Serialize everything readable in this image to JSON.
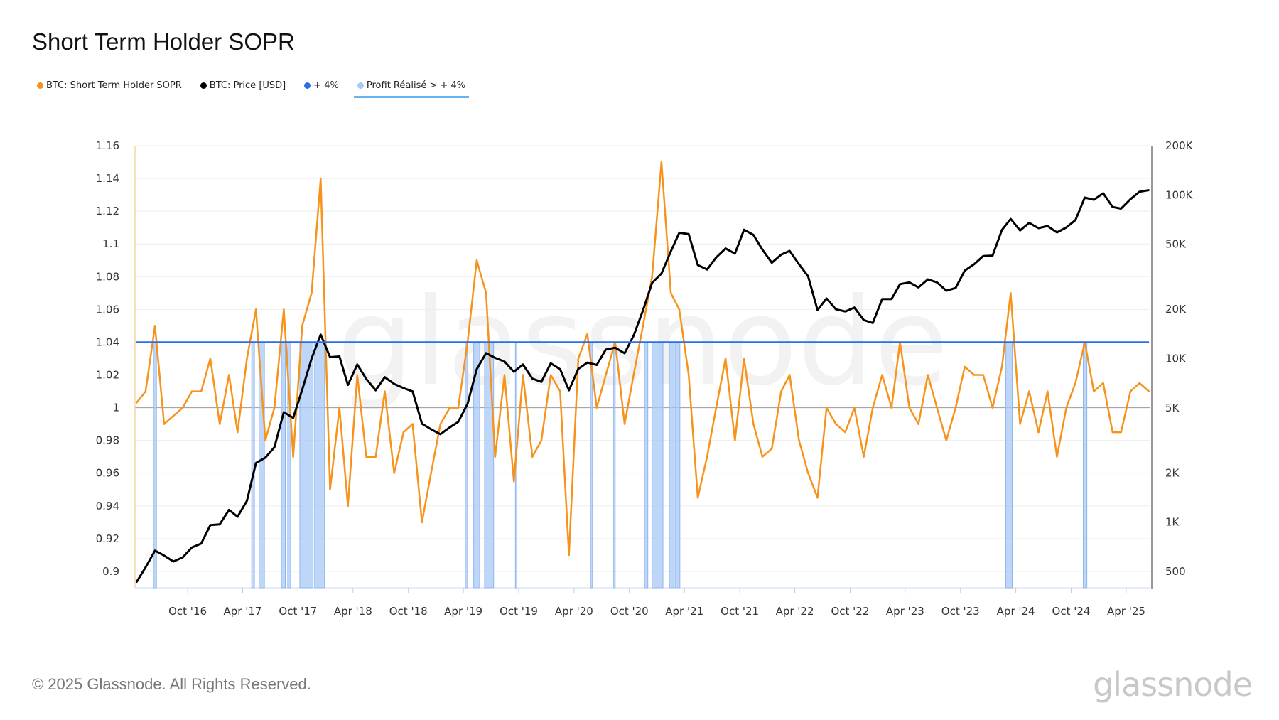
{
  "title": "Short Term Holder SOPR",
  "legend": [
    {
      "label": "BTC: Short Term Holder SOPR",
      "color": "#f7931a"
    },
    {
      "label": "BTC: Price [USD]",
      "color": "#000000"
    },
    {
      "label": "+ 4%",
      "color": "#2a6ee8"
    },
    {
      "label": "Profit Réalisé > + 4%",
      "color": "#a8c8f5",
      "active": true
    }
  ],
  "footer": "© 2025 Glassnode. All Rights Reserved.",
  "logo": "glassnode",
  "watermark": "glassnode",
  "chart_data": {
    "type": "line",
    "title": "Short Term Holder SOPR",
    "x_range": [
      "2016-04-10",
      "2025-06-20"
    ],
    "x_ticks": [
      "Oct '16",
      "Apr '17",
      "Oct '17",
      "Apr '18",
      "Oct '18",
      "Apr '19",
      "Oct '19",
      "Apr '20",
      "Oct '20",
      "Apr '21",
      "Oct '21",
      "Apr '22",
      "Oct '22",
      "Apr '23",
      "Oct '23",
      "Apr '24",
      "Oct '24",
      "Apr '25"
    ],
    "x_tick_dates": [
      "2016-10-01",
      "2017-04-01",
      "2017-10-01",
      "2018-04-01",
      "2018-10-01",
      "2019-04-01",
      "2019-10-01",
      "2020-04-01",
      "2020-10-01",
      "2021-04-01",
      "2021-10-01",
      "2022-04-01",
      "2022-10-01",
      "2023-04-01",
      "2023-10-01",
      "2024-04-01",
      "2024-10-01",
      "2025-04-01"
    ],
    "y_left": {
      "range": [
        0.89,
        1.16
      ],
      "ticks": [
        "0.9",
        "0.92",
        "0.94",
        "0.96",
        "0.98",
        "1",
        "1.02",
        "1.04",
        "1.06",
        "1.08",
        "1.1",
        "1.12",
        "1.14",
        "1.16"
      ]
    },
    "y_right": {
      "scale": "log",
      "range": [
        397,
        200000
      ],
      "ticks": [
        "500",
        "1K",
        "2K",
        "5K",
        "10K",
        "20K",
        "50K",
        "100K",
        "200K"
      ],
      "tick_values": [
        500,
        1000,
        2000,
        5000,
        10000,
        20000,
        50000,
        100000,
        200000
      ]
    },
    "grid": true,
    "legend_position": "top-left",
    "series_start_month": "2016-04",
    "series": [
      {
        "name": "BTC: Short Term Holder SOPR",
        "axis": "left",
        "color": "#f7931a",
        "values": [
          1.003,
          1.01,
          1.05,
          0.99,
          0.995,
          1.0,
          1.01,
          1.01,
          1.03,
          0.99,
          1.02,
          0.985,
          1.03,
          1.06,
          0.98,
          1.0,
          1.06,
          0.97,
          1.05,
          1.07,
          1.14,
          0.95,
          1.0,
          0.94,
          1.02,
          0.97,
          0.97,
          1.01,
          0.96,
          0.985,
          0.99,
          0.93,
          0.96,
          0.99,
          1.0,
          1.0,
          1.04,
          1.09,
          1.07,
          0.97,
          1.02,
          0.955,
          1.02,
          0.97,
          0.98,
          1.02,
          1.01,
          0.91,
          1.03,
          1.045,
          1.0,
          1.02,
          1.04,
          0.99,
          1.02,
          1.05,
          1.08,
          1.15,
          1.07,
          1.06,
          1.02,
          0.945,
          0.97,
          1.0,
          1.03,
          0.98,
          1.03,
          0.99,
          0.97,
          0.975,
          1.01,
          1.02,
          0.98,
          0.96,
          0.945,
          1.0,
          0.99,
          0.985,
          1.0,
          0.97,
          1.0,
          1.02,
          1.0,
          1.04,
          1.0,
          0.99,
          1.02,
          1.0,
          0.98,
          1.0,
          1.025,
          1.02,
          1.02,
          1.0,
          1.025,
          1.07,
          0.99,
          1.01,
          0.985,
          1.01,
          0.97,
          1.0,
          1.015,
          1.04,
          1.01,
          1.015,
          0.985,
          0.985,
          1.01,
          1.015,
          1.01
        ]
      },
      {
        "name": "BTC: Price [USD]",
        "axis": "right",
        "color": "#000000",
        "values": [
          430,
          530,
          670,
          625,
          575,
          610,
          700,
          740,
          960,
          970,
          1190,
          1080,
          1350,
          2300,
          2480,
          2870,
          4700,
          4340,
          6450,
          10000,
          14000,
          10200,
          10300,
          6900,
          9200,
          7500,
          6400,
          7700,
          7000,
          6600,
          6300,
          4000,
          3700,
          3450,
          3800,
          4100,
          5300,
          8600,
          10800,
          10100,
          9600,
          8300,
          9200,
          7550,
          7200,
          9350,
          8600,
          6400,
          8650,
          9450,
          9140,
          11350,
          11650,
          10780,
          13800,
          19700,
          29000,
          33100,
          45200,
          58800,
          57700,
          37300,
          35000,
          41500,
          47100,
          43800,
          61300,
          57000,
          46300,
          38500,
          43200,
          45500,
          37700,
          31800,
          19800,
          23300,
          20000,
          19400,
          20500,
          17200,
          16500,
          23100,
          23100,
          28500,
          29200,
          27200,
          30500,
          29200,
          26000,
          27000,
          34500,
          37700,
          42300,
          42600,
          61200,
          71300,
          60700,
          67500,
          62700,
          64600,
          59000,
          63300,
          70200,
          96400,
          93400,
          102400,
          84400,
          82500,
          94200,
          104600,
          107000
        ]
      },
      {
        "name": "+ 4%",
        "axis": "left",
        "color": "#2a6ee8",
        "constant": 1.04
      }
    ],
    "bands": {
      "name": "Profit Réalisé > + 4%",
      "color": "#a8c8f5",
      "ranges": [
        [
          "2016-06-10",
          "2016-06-20"
        ],
        [
          "2017-05-01",
          "2017-05-10"
        ],
        [
          "2017-05-25",
          "2017-06-12"
        ],
        [
          "2017-08-07",
          "2017-08-20"
        ],
        [
          "2017-08-28",
          "2017-09-07"
        ],
        [
          "2017-10-07",
          "2017-11-20"
        ],
        [
          "2017-11-25",
          "2017-12-28"
        ],
        [
          "2019-04-07",
          "2019-04-15"
        ],
        [
          "2019-05-05",
          "2019-05-25"
        ],
        [
          "2019-06-10",
          "2019-07-10"
        ],
        [
          "2019-09-20",
          "2019-09-25"
        ],
        [
          "2020-05-25",
          "2020-06-01"
        ],
        [
          "2020-08-10",
          "2020-08-15"
        ],
        [
          "2020-11-20",
          "2020-12-01"
        ],
        [
          "2020-12-15",
          "2021-01-20"
        ],
        [
          "2021-02-10",
          "2021-02-25"
        ],
        [
          "2021-03-01",
          "2021-03-17"
        ],
        [
          "2024-02-28",
          "2024-03-20"
        ],
        [
          "2024-11-10",
          "2024-11-22"
        ]
      ]
    }
  }
}
